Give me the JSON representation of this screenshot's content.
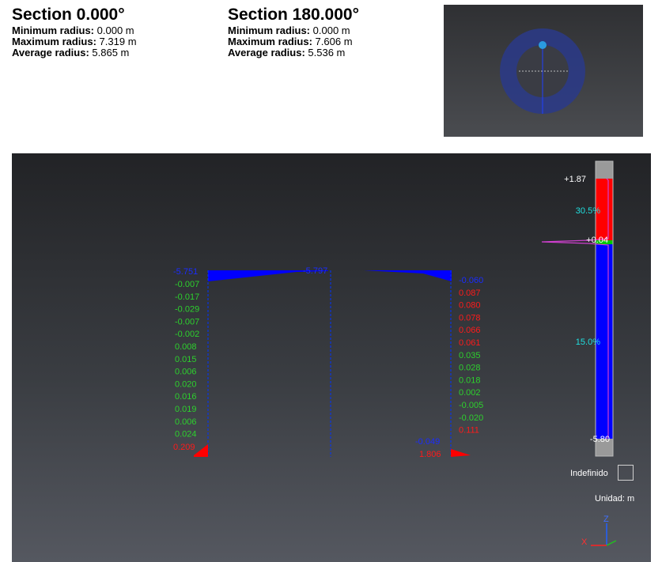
{
  "section_left": {
    "title": "Section 0.000°",
    "min_label": "Minimum radius:",
    "min_value": "0.000 m",
    "max_label": "Maximum radius:",
    "max_value": "7.319 m",
    "avg_label": "Average radius:",
    "avg_value": "5.865 m"
  },
  "section_right": {
    "title": "Section 180.000°",
    "min_label": "Minimum radius:",
    "min_value": "0.000 m",
    "max_label": "Maximum radius:",
    "max_value": "7.606 m",
    "avg_label": "Average radius:",
    "avg_value": "5.536 m"
  },
  "profile": {
    "top_left": "-5.751",
    "top_center": "-5.797",
    "left_values": [
      "-0.007",
      "-0.017",
      "-0.029",
      "-0.007",
      "-0.002",
      "0.008",
      "0.015",
      "0.006",
      "0.020",
      "0.016",
      "0.019",
      "0.006",
      "0.024"
    ],
    "left_bottom": "0.209",
    "right_values": [
      "-0.060",
      "0.087",
      "0.080",
      "0.078",
      "0.066",
      "0.061",
      "0.035",
      "0.028",
      "0.018",
      "0.002",
      "-0.005",
      "-0.020",
      "0.111"
    ],
    "right_bottom_a": "-0.049",
    "right_bottom_b": "1.806"
  },
  "scale": {
    "max": "+1.87",
    "mid": "+0.04",
    "min": "-5.80",
    "pct_upper": "30.5%",
    "pct_lower": "15.0%",
    "undefined_label": "Indefinido",
    "unit_label": "Unidad: m"
  },
  "axes": {
    "z": "Z",
    "x": "X"
  },
  "colors": {
    "positive": "#ff0000",
    "negative": "#0000ff",
    "near_zero": "#00c800",
    "histogram": "#d040d0"
  }
}
